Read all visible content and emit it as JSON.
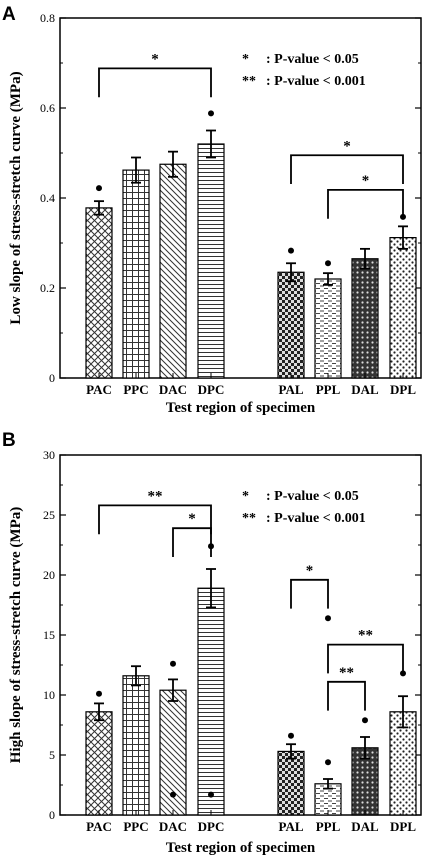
{
  "chart_data": [
    {
      "type": "bar",
      "panel": "A",
      "categories": [
        "PAC",
        "PPC",
        "DAC",
        "DPC",
        "PAL",
        "PPL",
        "DAL",
        "DPL"
      ],
      "values": [
        0.378,
        0.462,
        0.475,
        0.52,
        0.235,
        0.22,
        0.265,
        0.312
      ],
      "errors": [
        0.015,
        0.028,
        0.028,
        0.03,
        0.02,
        0.013,
        0.022,
        0.025
      ],
      "ylabel": "Low slope of stress-stretch curve (MPa)",
      "xlabel": "Test region of specimen",
      "ylim": [
        0,
        0.8
      ],
      "yticks": [
        "0",
        "0.2",
        "0.4",
        "0.6",
        "0.8"
      ],
      "legend": [
        {
          "symbol": "*",
          "text": ": P-value  < 0.05"
        },
        {
          "symbol": "**",
          "text": ": P-value  < 0.001"
        }
      ],
      "outliers": [
        {
          "category": "PAC",
          "value": 0.422
        },
        {
          "category": "DPC",
          "value": 0.588
        },
        {
          "category": "PAL",
          "value": 0.283
        },
        {
          "category": "PPL",
          "value": 0.255
        },
        {
          "category": "DPL",
          "value": 0.358
        }
      ],
      "significance": [
        {
          "from": "PAC",
          "to": "DPC",
          "label": "*",
          "level": 0.688
        },
        {
          "from": "PAL",
          "to": "DPL",
          "label": "*",
          "level": 0.495
        },
        {
          "from": "PPL",
          "to": "DPL",
          "label": "*",
          "level": 0.418
        }
      ]
    },
    {
      "type": "bar",
      "panel": "B",
      "categories": [
        "PAC",
        "PPC",
        "DAC",
        "DPC",
        "PAL",
        "PPL",
        "DAL",
        "DPL"
      ],
      "values": [
        8.6,
        11.6,
        10.4,
        18.9,
        5.3,
        2.6,
        5.6,
        8.6
      ],
      "errors": [
        0.7,
        0.8,
        0.9,
        1.6,
        0.6,
        0.4,
        0.9,
        1.3
      ],
      "ylabel": "High slope of stress-stretch curve (MPa)",
      "xlabel": "Test region of specimen",
      "ylim": [
        0,
        30
      ],
      "yticks": [
        "0",
        "5",
        "10",
        "15",
        "20",
        "25",
        "30"
      ],
      "legend": [
        {
          "symbol": "*",
          "text": ": P-value  < 0.05"
        },
        {
          "symbol": "**",
          "text": ": P-value  < 0.001"
        }
      ],
      "outliers": [
        {
          "category": "PAC",
          "value": 10.1
        },
        {
          "category": "DAC",
          "value": 12.6
        },
        {
          "category": "DAC",
          "value": 1.7
        },
        {
          "category": "DPC",
          "value": 22.4
        },
        {
          "category": "DPC",
          "value": 1.7
        },
        {
          "category": "PAL",
          "value": 6.6
        },
        {
          "category": "PPL",
          "value": 16.4
        },
        {
          "category": "PPL",
          "value": 4.4
        },
        {
          "category": "DAL",
          "value": 7.9
        },
        {
          "category": "DPL",
          "value": 11.8
        }
      ],
      "significance": [
        {
          "from": "PAC",
          "to": "DPC",
          "label": "**",
          "level": 25.8
        },
        {
          "from": "DAC",
          "to": "DPC",
          "label": "*",
          "level": 23.9
        },
        {
          "from": "PAL",
          "to": "PPL",
          "label": "*",
          "level": 19.6
        },
        {
          "from": "PPL",
          "to": "DPL",
          "label": "**",
          "level": 14.2
        },
        {
          "from": "PPL",
          "to": "DAL",
          "label": "**",
          "level": 11.1
        }
      ]
    }
  ]
}
